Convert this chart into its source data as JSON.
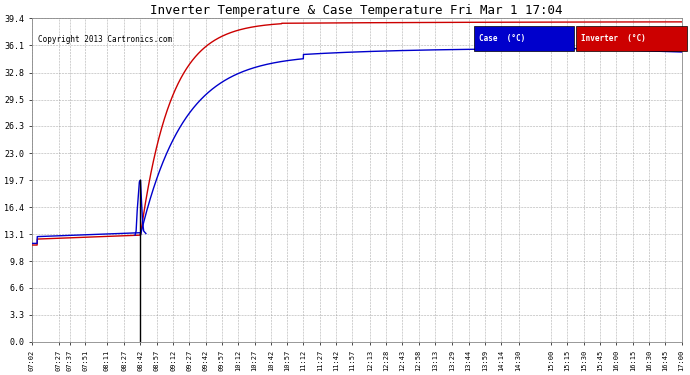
{
  "title": "Inverter Temperature & Case Temperature Fri Mar 1 17:04",
  "copyright": "Copyright 2013 Cartronics.com",
  "bg_color": "#ffffff",
  "plot_bg_color": "#ffffff",
  "grid_color": "#999999",
  "case_color": "#0000cc",
  "inverter_color": "#cc0000",
  "ylim": [
    0.0,
    39.4
  ],
  "yticks": [
    0.0,
    3.3,
    6.6,
    9.8,
    13.1,
    16.4,
    19.7,
    23.0,
    26.3,
    29.5,
    32.8,
    36.1,
    39.4
  ],
  "x_tick_labels": [
    "07:02",
    "07:27",
    "07:37",
    "07:51",
    "08:11",
    "08:27",
    "08:42",
    "08:57",
    "09:12",
    "09:27",
    "09:42",
    "09:57",
    "10:12",
    "10:27",
    "10:42",
    "10:57",
    "11:12",
    "11:27",
    "11:42",
    "11:57",
    "12:13",
    "12:28",
    "12:43",
    "12:58",
    "13:13",
    "13:29",
    "13:44",
    "13:59",
    "14:14",
    "14:30",
    "15:00",
    "15:15",
    "15:30",
    "15:45",
    "16:00",
    "16:15",
    "16:30",
    "16:45",
    "17:00"
  ],
  "legend_case_label": "Case  (°C)",
  "legend_inverter_label": "Inverter  (°C)"
}
